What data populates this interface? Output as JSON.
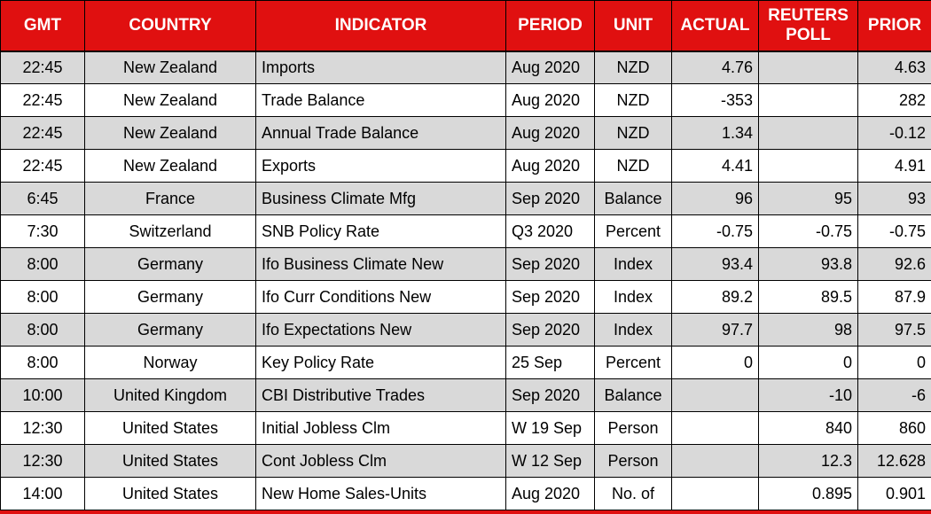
{
  "colors": {
    "header_bg": "#e01010",
    "header_text": "#ffffff",
    "row_stripe_bg": "#d9d9d9",
    "row_plain_bg": "#ffffff",
    "grid_border": "#000000"
  },
  "table": {
    "columns": [
      {
        "key": "gmt",
        "label": "GMT",
        "align": "center"
      },
      {
        "key": "country",
        "label": "COUNTRY",
        "align": "center"
      },
      {
        "key": "indicator",
        "label": "INDICATOR",
        "align": "left"
      },
      {
        "key": "period",
        "label": "PERIOD",
        "align": "left"
      },
      {
        "key": "unit",
        "label": "UNIT",
        "align": "center"
      },
      {
        "key": "actual",
        "label": "ACTUAL",
        "align": "right"
      },
      {
        "key": "reuters_poll",
        "label": "REUTERS POLL",
        "align": "right"
      },
      {
        "key": "prior",
        "label": "PRIOR",
        "align": "right"
      }
    ],
    "rows": [
      {
        "cells": [
          "22:45",
          "New Zealand",
          "Imports",
          "Aug 2020",
          "NZD",
          "4.76",
          "",
          "4.63"
        ]
      },
      {
        "cells": [
          "22:45",
          "New Zealand",
          "Trade Balance",
          "Aug 2020",
          "NZD",
          "-353",
          "",
          "282"
        ]
      },
      {
        "cells": [
          "22:45",
          "New Zealand",
          "Annual Trade Balance",
          "Aug 2020",
          "NZD",
          "1.34",
          "",
          "-0.12"
        ]
      },
      {
        "cells": [
          "22:45",
          "New Zealand",
          "Exports",
          "Aug 2020",
          "NZD",
          "4.41",
          "",
          "4.91"
        ]
      },
      {
        "cells": [
          "6:45",
          "France",
          "Business Climate Mfg",
          "Sep 2020",
          "Balance",
          "96",
          "95",
          "93"
        ]
      },
      {
        "cells": [
          "7:30",
          "Switzerland",
          "SNB Policy Rate",
          "Q3 2020",
          "Percent",
          "-0.75",
          "-0.75",
          "-0.75"
        ]
      },
      {
        "cells": [
          "8:00",
          "Germany",
          "Ifo Business Climate New",
          "Sep 2020",
          "Index",
          "93.4",
          "93.8",
          "92.6"
        ]
      },
      {
        "cells": [
          "8:00",
          "Germany",
          "Ifo Curr Conditions New",
          "Sep 2020",
          "Index",
          "89.2",
          "89.5",
          "87.9"
        ]
      },
      {
        "cells": [
          "8:00",
          "Germany",
          "Ifo Expectations New",
          "Sep 2020",
          "Index",
          "97.7",
          "98",
          "97.5"
        ]
      },
      {
        "cells": [
          "8:00",
          "Norway",
          "Key Policy Rate",
          "25 Sep",
          "Percent",
          "0",
          "0",
          "0"
        ]
      },
      {
        "cells": [
          "10:00",
          "United Kingdom",
          "CBI Distributive Trades",
          "Sep 2020",
          "Balance",
          "",
          "-10",
          "-6"
        ]
      },
      {
        "cells": [
          "12:30",
          "United States",
          "Initial Jobless Clm",
          "W 19 Sep",
          "Person",
          "",
          "840",
          "860"
        ]
      },
      {
        "cells": [
          "12:30",
          "United States",
          "Cont Jobless Clm",
          "W 12 Sep",
          "Person",
          "",
          "12.3",
          "12.628"
        ]
      },
      {
        "cells": [
          "14:00",
          "United States",
          "New Home Sales-Units",
          "Aug 2020",
          "No. of",
          "",
          "0.895",
          "0.901"
        ]
      }
    ]
  }
}
